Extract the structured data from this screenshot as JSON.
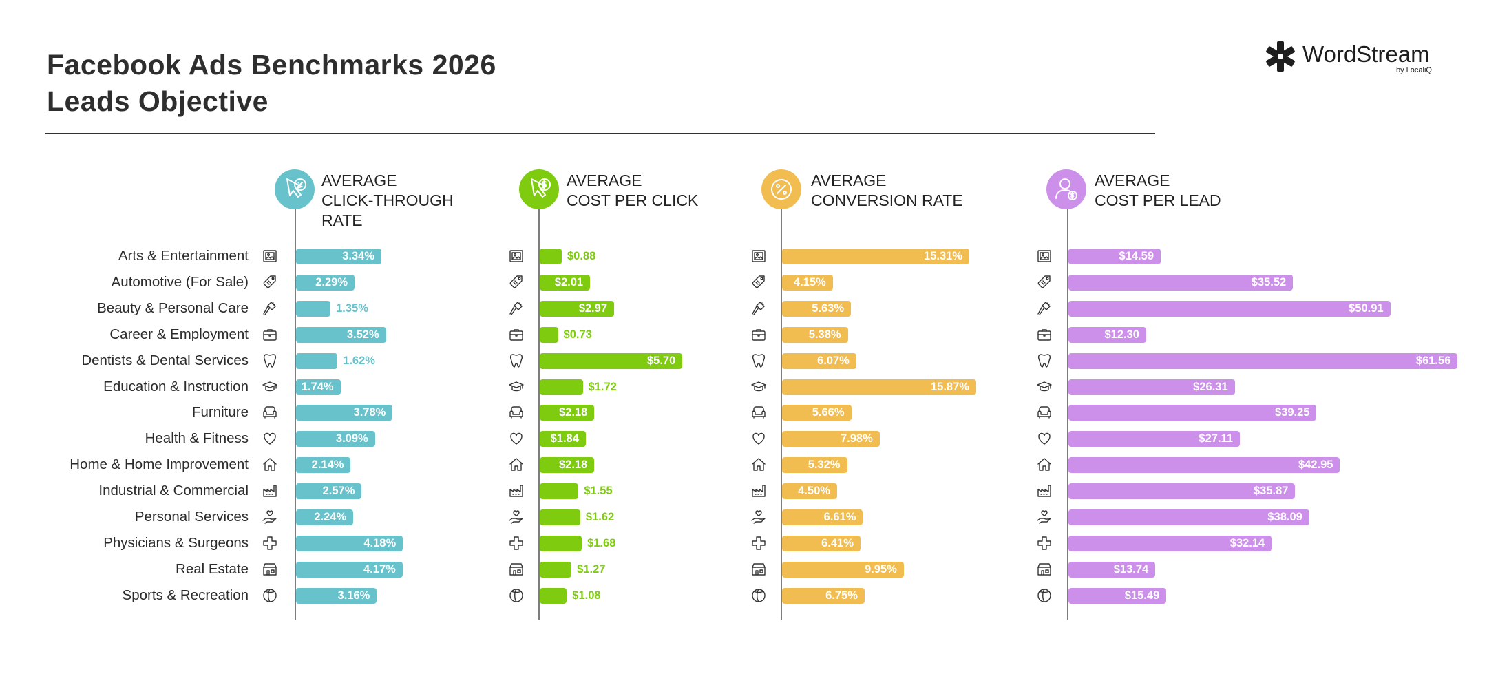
{
  "title": {
    "line1": "Facebook Ads Benchmarks 2026",
    "line2": "Leads Objective"
  },
  "logo": {
    "name": "WordStream",
    "sub": "by LocaliQ",
    "icon": "wordstream-asterisk-icon"
  },
  "chart_data": {
    "type": "bar",
    "orientation": "horizontal",
    "title": "Facebook Ads Benchmarks 2026 Leads Objective",
    "categories": [
      "Arts & Entertainment",
      "Automotive (For Sale)",
      "Beauty & Personal Care",
      "Career & Employment",
      "Dentists & Dental Services",
      "Education & Instruction",
      "Furniture",
      "Health & Fitness",
      "Home & Home Improvement",
      "Industrial & Commercial",
      "Personal Services",
      "Physicians & Surgeons",
      "Real Estate",
      "Sports & Recreation"
    ],
    "category_icons": [
      "picture-frame-icon",
      "price-tag-icon",
      "hair-brush-icon",
      "briefcase-icon",
      "tooth-icon",
      "graduation-cap-icon",
      "armchair-icon",
      "heart-icon",
      "house-icon",
      "factory-icon",
      "hand-heart-icon",
      "medical-cross-icon",
      "storefront-icon",
      "ball-icon"
    ],
    "series": [
      {
        "name": "AVERAGE CLICK-THROUGH RATE",
        "title_lines": [
          "AVERAGE",
          "CLICK-THROUGH",
          "RATE"
        ],
        "color": "#68c2cb",
        "icon": "cursor-percent-icon",
        "max": 9.5,
        "values": [
          3.34,
          2.29,
          1.35,
          3.52,
          1.62,
          1.74,
          3.78,
          3.09,
          2.14,
          2.57,
          2.24,
          4.18,
          4.17,
          3.16
        ],
        "labels": [
          "3.34%",
          "2.29%",
          "1.35%",
          "3.52%",
          "1.62%",
          "1.74%",
          "3.78%",
          "3.09%",
          "2.14%",
          "2.57%",
          "2.24%",
          "4.18%",
          "4.17%",
          "3.16%"
        ]
      },
      {
        "name": "AVERAGE COST PER CLICK",
        "title_lines": [
          "AVERAGE",
          "COST PER CLICK"
        ],
        "color": "#7ecb10",
        "icon": "cursor-dollar-icon",
        "max": 10,
        "values": [
          0.88,
          2.01,
          2.97,
          0.73,
          5.7,
          1.72,
          2.18,
          1.84,
          2.18,
          1.55,
          1.62,
          1.68,
          1.27,
          1.08
        ],
        "labels": [
          "$0.88",
          "$2.01",
          "$2.97",
          "$0.73",
          "$5.70",
          "$1.72",
          "$2.18",
          "$1.84",
          "$2.18",
          "$1.55",
          "$1.62",
          "$1.68",
          "$1.27",
          "$1.08"
        ]
      },
      {
        "name": "AVERAGE CONVERSION RATE",
        "title_lines": [
          "AVERAGE",
          "CONVERSION RATE"
        ],
        "color": "#f2bd50",
        "icon": "percent-badge-icon",
        "max": 25,
        "values": [
          15.31,
          4.15,
          5.63,
          5.38,
          6.07,
          15.87,
          5.66,
          7.98,
          5.32,
          4.5,
          6.61,
          6.41,
          9.95,
          6.75
        ],
        "labels": [
          "15.31%",
          "4.15%",
          "5.63%",
          "5.38%",
          "6.07%",
          "15.87%",
          "5.66%",
          "7.98%",
          "5.32%",
          "4.50%",
          "6.61%",
          "6.41%",
          "9.95%",
          "6.75%"
        ]
      },
      {
        "name": "AVERAGE COST PER LEAD",
        "title_lines": [
          "AVERAGE",
          "COST PER LEAD"
        ],
        "color": "#cd90ea",
        "icon": "person-dollar-icon",
        "max": 61.56,
        "values": [
          14.59,
          35.52,
          50.91,
          12.3,
          61.56,
          26.31,
          39.25,
          27.11,
          42.95,
          35.87,
          38.09,
          32.14,
          13.74,
          15.49
        ],
        "labels": [
          "$14.59",
          "$35.52",
          "$50.91",
          "$12.30",
          "$61.56",
          "$26.31",
          "$39.25",
          "$27.11",
          "$42.95",
          "$35.87",
          "$38.09",
          "$32.14",
          "$13.74",
          "$15.49"
        ]
      }
    ]
  }
}
